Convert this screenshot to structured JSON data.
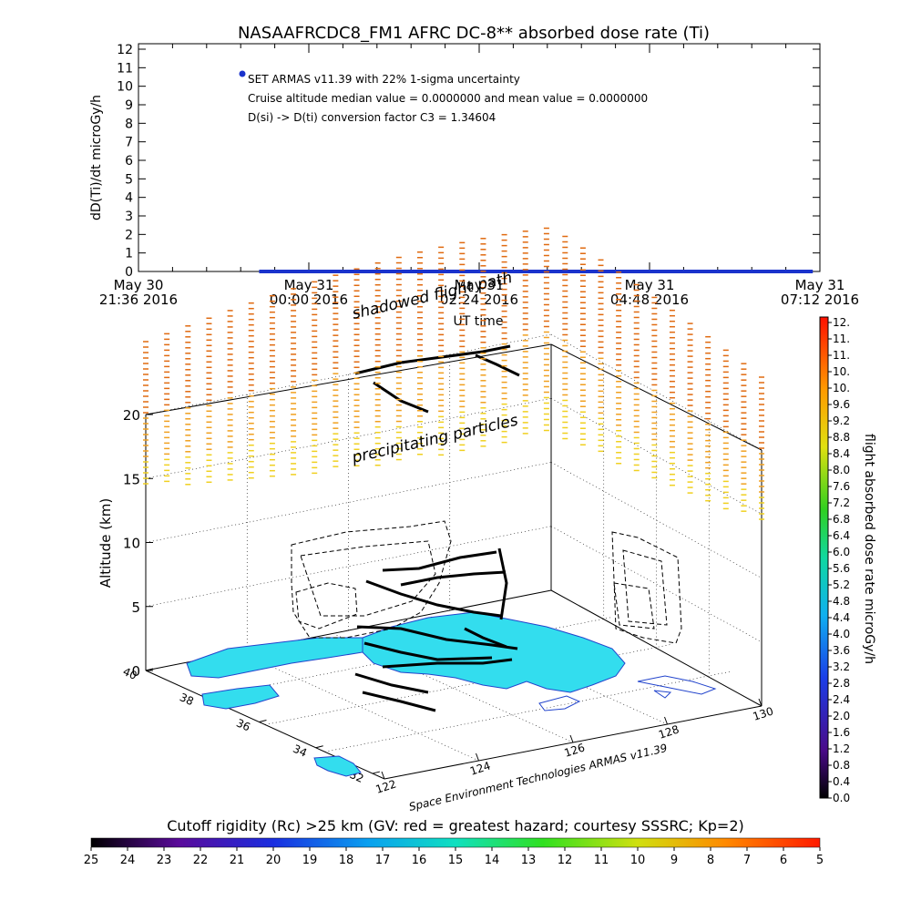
{
  "chart_data": [
    {
      "type": "scatter",
      "title": "NASAAFRCDC8_FM1 AFRC DC-8** absorbed dose rate (Ti)",
      "ylabel": "dD(Ti)/dt microGy/h",
      "xlabel": "UT time",
      "ylim": [
        0,
        12
      ],
      "y_ticks": [
        "0",
        "1",
        "2",
        "3",
        "4",
        "5",
        "6",
        "7",
        "8",
        "9",
        "10",
        "11",
        "12"
      ],
      "x_ticks": [
        {
          "line1": "May 30",
          "line2": "21:36 2016"
        },
        {
          "line1": "May 31",
          "line2": "00:00 2016"
        },
        {
          "line1": "May 31",
          "line2": "02:24 2016"
        },
        {
          "line1": "May 31",
          "line2": "04:48 2016"
        },
        {
          "line1": "May 31",
          "line2": "07:12 2016"
        }
      ],
      "x_range_hours": [
        0,
        9.6
      ],
      "series": [
        {
          "color": "#1a33cc",
          "x_start_hours": 1.7,
          "x_end_hours": 9.5,
          "y": 0.0
        }
      ],
      "legend_marker_color": "#1a33cc",
      "annotations": [
        "SET ARMAS v11.39 with 22% 1-sigma uncertainty",
        "Cruise altitude median value = 0.0000000 and mean value = 0.0000000",
        "D(si) -> D(ti) conversion factor C3 = 1.34604"
      ]
    },
    {
      "type": "3d-scatter",
      "zlabel": "Altitude (km)",
      "z_ticks": [
        "0",
        "5",
        "10",
        "15",
        "20"
      ],
      "lat_ticks": [
        "40",
        "38",
        "36",
        "34",
        "32"
      ],
      "lon_ticks": [
        "122",
        "124",
        "126",
        "128",
        "130"
      ],
      "overlay_labels": {
        "shadowed": "shadowed flight path",
        "precip": "precipitating particles",
        "credit": "Space Environment Technologies ARMAS v11.39"
      },
      "colorbar": {
        "title": "flight absorbed dose rate microGy/h",
        "ticks": [
          "12.",
          "11.",
          "11.",
          "10.",
          "10.",
          "9.6",
          "9.2",
          "8.8",
          "8.4",
          "8.0",
          "7.6",
          "7.2",
          "6.8",
          "6.4",
          "6.0",
          "5.6",
          "5.2",
          "4.8",
          "4.4",
          "4.0",
          "3.6",
          "3.2",
          "2.8",
          "2.4",
          "2.0",
          "1.6",
          "1.2",
          "0.8",
          "0.4",
          "0.0"
        ]
      },
      "land_color": "#33ddee",
      "coast_color": "#2244cc",
      "flight_path_color": "#000000"
    },
    {
      "type": "colorbar",
      "title": "Cutoff rigidity (Rc) >25 km (GV: red = greatest hazard; courtesy SSSRC; Kp=2)",
      "ticks": [
        "25",
        "24",
        "23",
        "22",
        "21",
        "20",
        "19",
        "18",
        "17",
        "16",
        "15",
        "14",
        "13",
        "12",
        "11",
        "10",
        "9",
        "8",
        "7",
        "6",
        "5"
      ]
    }
  ]
}
